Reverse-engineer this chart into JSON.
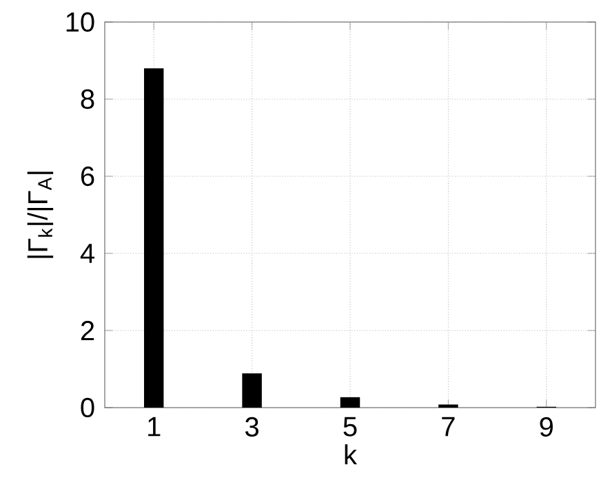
{
  "chart_data": {
    "type": "bar",
    "xlabel": "k",
    "ylabel": "|Γ$_{k}$|/|Γ$_{A}$|",
    "x": [
      1,
      3,
      5,
      7,
      9
    ],
    "values": [
      8.8,
      0.89,
      0.27,
      0.08,
      0.02
    ],
    "color": "#000000",
    "xlim": [
      0,
      10
    ],
    "xticks": [
      1,
      3,
      5,
      7,
      9
    ],
    "ylim": [
      0,
      10
    ],
    "yticks": [
      0,
      2,
      4,
      6,
      8,
      10
    ],
    "grid": true
  }
}
